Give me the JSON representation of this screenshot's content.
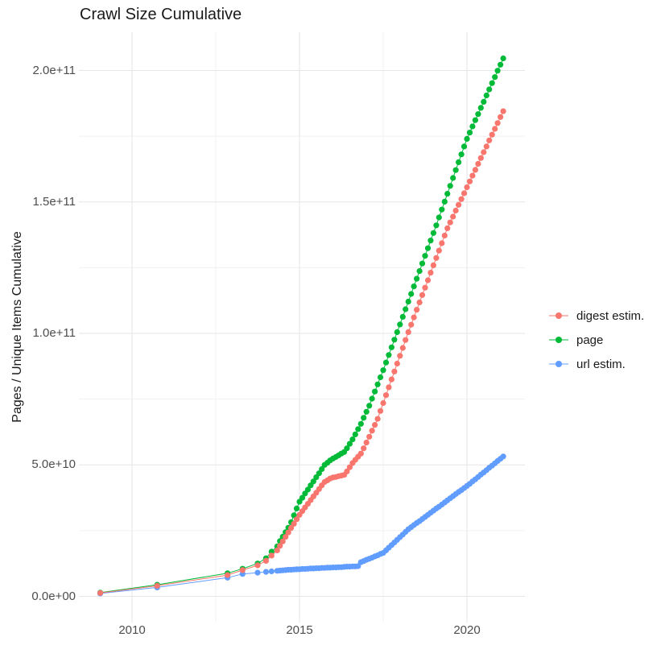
{
  "chart_data": {
    "type": "scatter",
    "title": "Crawl Size Cumulative",
    "xlabel": "",
    "ylabel": "Pages / Unique Items Cumulative",
    "grid": true,
    "legend_position": "right",
    "value_scale_note": "series values are in units of 1e9 (billions)",
    "xlim": [
      2008.45,
      2021.7
    ],
    "ylim_raw": [
      0.0,
      205000000000.0
    ],
    "x_ticks": [
      {
        "value": 2010,
        "label": "2010"
      },
      {
        "value": 2015,
        "label": "2015"
      },
      {
        "value": 2020,
        "label": "2020"
      }
    ],
    "x_minor_ticks": [
      2012.5,
      2017.5
    ],
    "y_ticks": [
      {
        "value": 0,
        "label": "0.0e+00"
      },
      {
        "value": 50,
        "label": "5.0e+10"
      },
      {
        "value": 100,
        "label": "1.0e+11"
      },
      {
        "value": 150,
        "label": "1.5e+11"
      },
      {
        "value": 200,
        "label": "2.0e+11"
      }
    ],
    "y_minor_ticks": [
      25,
      75,
      125,
      175
    ],
    "colors": {
      "grid_major": "#e6e6e6",
      "grid_minor": "#f1f1f1"
    },
    "x": [
      2009.05,
      2010.75,
      2012.85,
      2013.3,
      2013.75,
      2014.0,
      2014.167,
      2014.333,
      2014.417,
      2014.5,
      2014.583,
      2014.667,
      2014.75,
      2014.833,
      2014.917,
      2015.0,
      2015.083,
      2015.167,
      2015.25,
      2015.333,
      2015.417,
      2015.5,
      2015.583,
      2015.667,
      2015.75,
      2015.833,
      2015.917,
      2016.0,
      2016.083,
      2016.167,
      2016.25,
      2016.333,
      2016.417,
      2016.5,
      2016.583,
      2016.667,
      2016.75,
      2016.833,
      2016.917,
      2017.0,
      2017.083,
      2017.167,
      2017.25,
      2017.333,
      2017.417,
      2017.5,
      2017.583,
      2017.667,
      2017.75,
      2017.833,
      2017.917,
      2018.0,
      2018.083,
      2018.167,
      2018.25,
      2018.333,
      2018.417,
      2018.5,
      2018.583,
      2018.667,
      2018.75,
      2018.833,
      2018.917,
      2019.0,
      2019.083,
      2019.167,
      2019.25,
      2019.333,
      2019.417,
      2019.5,
      2019.583,
      2019.667,
      2019.75,
      2019.833,
      2019.917,
      2020.0,
      2020.083,
      2020.167,
      2020.25,
      2020.333,
      2020.417,
      2020.5,
      2020.583,
      2020.667,
      2020.75,
      2020.833,
      2020.917,
      2021.0,
      2021.083
    ],
    "series": [
      {
        "name": "digest estim.",
        "color": "#F8766D",
        "values": [
          1.3,
          4.0,
          8.1,
          10,
          11.8,
          13.5,
          15.5,
          17.5,
          19.2,
          20.9,
          22.6,
          24.3,
          26,
          27.6,
          29.3,
          31,
          32.4,
          33.8,
          35.2,
          36.6,
          38,
          39.4,
          40.8,
          42.2,
          43.5,
          44.1,
          44.8,
          45.2,
          45.4,
          45.7,
          45.9,
          46.2,
          47.5,
          49.1,
          50.7,
          51.9,
          53.1,
          54.3,
          56.3,
          58.5,
          60.7,
          63,
          65.2,
          67.5,
          70.5,
          73.5,
          76.5,
          79.5,
          82.5,
          85.5,
          88.5,
          91.5,
          94.5,
          97.5,
          100.5,
          103.3,
          106.1,
          109,
          111.8,
          114.6,
          117.4,
          120.2,
          123.1,
          125.9,
          128.7,
          131.5,
          134.3,
          137.2,
          140,
          142.2,
          144.4,
          146.7,
          148.9,
          151.1,
          153.3,
          155.6,
          157.8,
          160,
          162.2,
          164.5,
          166.7,
          168.9,
          171.1,
          173.4,
          175.6,
          177.8,
          180,
          182.3,
          184.5
        ]
      },
      {
        "name": "page",
        "color": "#00BA38",
        "values": [
          1.4,
          4.4,
          8.8,
          10.5,
          12.5,
          14.5,
          17,
          19,
          21,
          22.7,
          24.4,
          26.1,
          28.2,
          30.8,
          33.4,
          36,
          37.5,
          39.1,
          40.6,
          42.2,
          43.7,
          45.3,
          46.8,
          48.4,
          50,
          50.8,
          51.7,
          52.4,
          53,
          53.6,
          54.3,
          54.9,
          56.3,
          58,
          59.7,
          61.6,
          63.6,
          65.6,
          67.9,
          70.2,
          72.5,
          75.2,
          77.9,
          80.6,
          83.3,
          86,
          88.9,
          91.8,
          94.7,
          97.6,
          100.5,
          103.4,
          106.3,
          109.2,
          112.1,
          115,
          117.9,
          120.8,
          123.7,
          126.6,
          129.5,
          132.4,
          135.3,
          138.2,
          141.1,
          144.1,
          147.1,
          150.1,
          153.1,
          156.1,
          159.1,
          162.1,
          165.1,
          168.1,
          171.1,
          174,
          176.4,
          178.7,
          181.1,
          183.4,
          185.8,
          188.1,
          190.5,
          192.8,
          195.2,
          197.5,
          199.9,
          202.2,
          204.6
        ]
      },
      {
        "name": "url estim.",
        "color": "#619CFF",
        "values": [
          1.1,
          3.4,
          7.1,
          8.5,
          9,
          9.3,
          9.5,
          9.7,
          9.8,
          9.9,
          10,
          10.1,
          10.1,
          10.2,
          10.3,
          10.3,
          10.4,
          10.4,
          10.5,
          10.6,
          10.6,
          10.7,
          10.7,
          10.8,
          10.8,
          10.9,
          10.9,
          11,
          11,
          11.1,
          11.1,
          11.2,
          11.3,
          11.3,
          11.4,
          11.4,
          11.5,
          13,
          13.4,
          13.9,
          14.3,
          14.7,
          15.2,
          15.6,
          16.1,
          16.5,
          17.5,
          18.5,
          19.5,
          20.5,
          21.5,
          22.5,
          23.5,
          24.5,
          25.5,
          26.3,
          27.1,
          27.9,
          28.6,
          29.4,
          30.2,
          31,
          31.8,
          32.6,
          33.4,
          34.1,
          34.9,
          35.7,
          36.5,
          37.3,
          38.1,
          38.9,
          39.7,
          40.4,
          41.2,
          42,
          42.8,
          43.7,
          44.5,
          45.4,
          46.3,
          47.1,
          48,
          48.9,
          49.7,
          50.6,
          51.5,
          52.3,
          53.2
        ]
      }
    ]
  }
}
